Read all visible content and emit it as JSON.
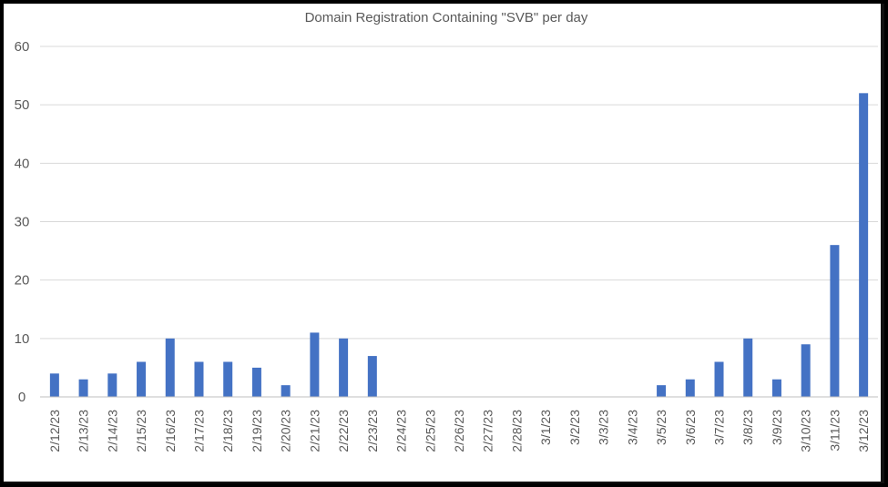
{
  "chart_data": {
    "type": "bar",
    "title": "Domain Registration Containing \"SVB\" per day",
    "xlabel": "",
    "ylabel": "",
    "ylim": [
      0,
      60
    ],
    "yticks": [
      0,
      10,
      20,
      30,
      40,
      50,
      60
    ],
    "grid": true,
    "legend": "none",
    "bar_color": "#4472C4",
    "categories": [
      "2/12/23",
      "2/13/23",
      "2/14/23",
      "2/15/23",
      "2/16/23",
      "2/17/23",
      "2/18/23",
      "2/19/23",
      "2/20/23",
      "2/21/23",
      "2/22/23",
      "2/23/23",
      "2/24/23",
      "2/25/23",
      "2/26/23",
      "2/27/23",
      "2/28/23",
      "3/1/23",
      "3/2/23",
      "3/3/23",
      "3/4/23",
      "3/5/23",
      "3/6/23",
      "3/7/23",
      "3/8/23",
      "3/9/23",
      "3/10/23",
      "3/11/23",
      "3/12/23"
    ],
    "values": [
      4,
      3,
      4,
      6,
      10,
      6,
      6,
      5,
      2,
      11,
      10,
      7,
      0,
      0,
      0,
      0,
      0,
      0,
      0,
      0,
      0,
      2,
      3,
      6,
      10,
      3,
      9,
      26,
      52
    ]
  }
}
